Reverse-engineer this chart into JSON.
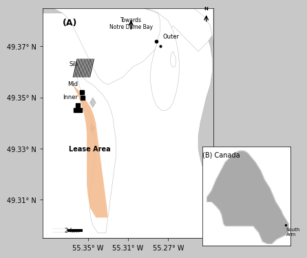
{
  "title": "",
  "background_color": "#c8c8c8",
  "land_color": "#ffffff",
  "water_color": "#c8c8c8",
  "lease_color": "#f4b98a",
  "lease_alpha": 0.7,
  "xlim": [
    55.225,
    55.395
  ],
  "ylim": [
    49.295,
    49.385
  ],
  "xlabel_ticks": [
    55.35,
    55.31,
    55.27
  ],
  "xlabel_labels": [
    "55.35° W",
    "55.31° W",
    "55.27° W"
  ],
  "ylabel_ticks": [
    49.31,
    49.33,
    49.35,
    49.37
  ],
  "ylabel_labels": [
    "49.31° N",
    "49.33° N",
    "49.35° N",
    "49.37° N"
  ],
  "label_A": "(A)",
  "label_B": "(B) Canada",
  "site_labels": [
    "Outer",
    "Mid",
    "Inner",
    "Sill"
  ],
  "north_arrow_lon": 55.31,
  "north_arrow_lat": 49.375,
  "toward_text": "Towards\nNotre Dame Bay",
  "lease_area_text": "Lease Area",
  "south_arm_text": "South\nArm",
  "scalebar_lon1": 55.385,
  "scalebar_lon2": 55.355,
  "scalebar_lat": 49.298,
  "scalebar_label": "2 km",
  "compass_color": "#000000",
  "site_marker_color": "#000000",
  "sill_hatch_color": "#000000"
}
